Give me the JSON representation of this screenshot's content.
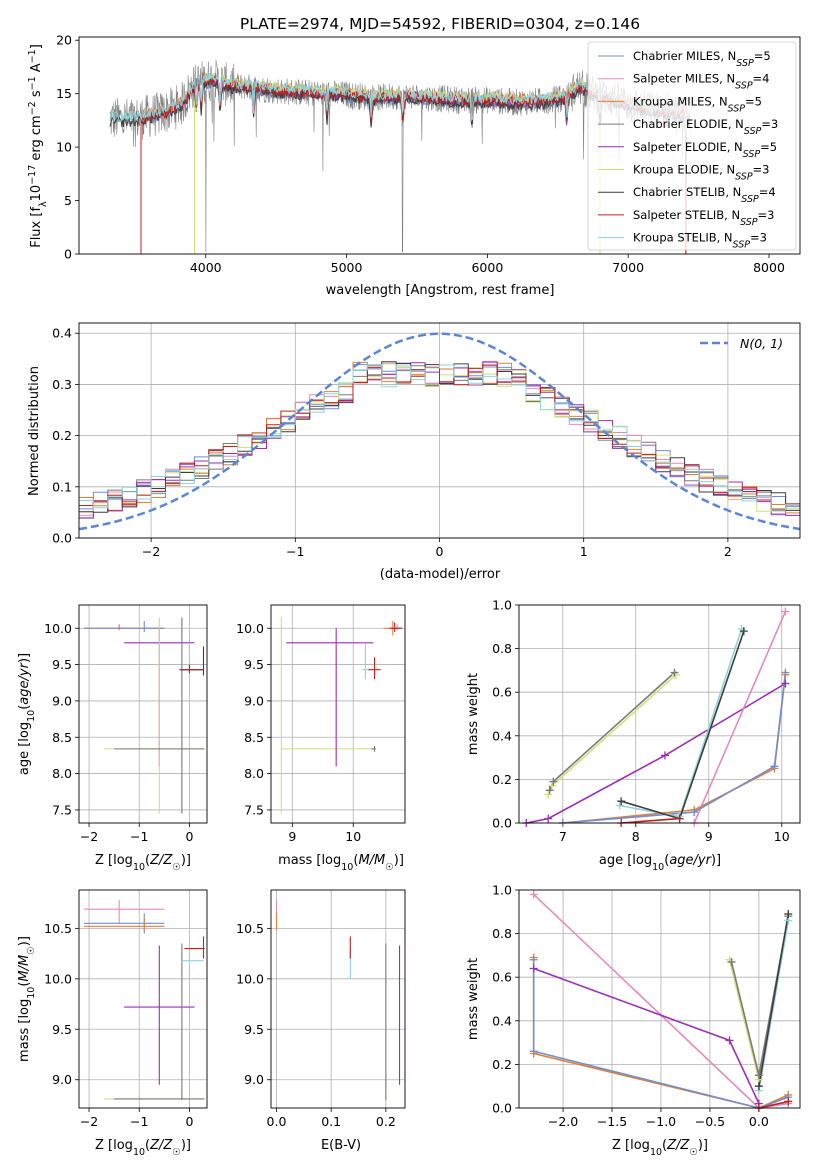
{
  "colors": {
    "chabrier_miles": "#6f8fd1",
    "salpeter_miles": "#e58ac1",
    "kroupa_miles": "#e0803a",
    "chabrier_elodie": "#7a7a7a",
    "salpeter_elodie": "#9a2fb5",
    "kroupa_elodie": "#cfe07a",
    "chabrier_stelib": "#3d3d3d",
    "salpeter_stelib": "#c0211f",
    "kroupa_stelib": "#8fd3dd",
    "normal": "#5b86d6",
    "grid": "#b0b0b0"
  },
  "chart_data": [
    {
      "id": "spectrum",
      "type": "line",
      "title": "PLATE=2974, MJD=54592, FIBERID=0304, z=0.146",
      "xlabel": "wavelength [Angstrom, rest frame]",
      "ylabel": "Flux [f_λ10^-17 erg cm^-2 s^-1 A^-1]",
      "xlim": [
        3100,
        8220
      ],
      "ylim": [
        0,
        20.3
      ],
      "xticks": [
        4000,
        5000,
        6000,
        7000,
        8000
      ],
      "yticks": [
        0,
        5,
        10,
        15,
        20
      ],
      "grid": false,
      "legend_position": "top-right",
      "legend": [
        {
          "name": "Chabrier MILES, N",
          "sub": "SSP",
          "suffix": "=5",
          "color_key": "chabrier_miles"
        },
        {
          "name": "Salpeter MILES, N",
          "sub": "SSP",
          "suffix": "=4",
          "color_key": "salpeter_miles"
        },
        {
          "name": "Kroupa MILES, N",
          "sub": "SSP",
          "suffix": "=5",
          "color_key": "kroupa_miles"
        },
        {
          "name": "Chabrier ELODIE, N",
          "sub": "SSP",
          "suffix": "=3",
          "color_key": "chabrier_elodie"
        },
        {
          "name": "Salpeter ELODIE, N",
          "sub": "SSP",
          "suffix": "=5",
          "color_key": "salpeter_elodie"
        },
        {
          "name": "Kroupa ELODIE, N",
          "sub": "SSP",
          "suffix": "=3",
          "color_key": "kroupa_elodie"
        },
        {
          "name": "Chabrier STELIB, N",
          "sub": "SSP",
          "suffix": "=4",
          "color_key": "chabrier_stelib"
        },
        {
          "name": "Salpeter STELIB, N",
          "sub": "SSP",
          "suffix": "=3",
          "color_key": "salpeter_stelib"
        },
        {
          "name": "Kroupa STELIB, N",
          "sub": "SSP",
          "suffix": "=3",
          "color_key": "kroupa_stelib"
        }
      ],
      "continuum": {
        "x": [
          3320,
          3500,
          3700,
          3830,
          3900,
          3950,
          4050,
          4150,
          4300,
          4500,
          4800,
          5000,
          5200,
          5400,
          5600,
          5800,
          6000,
          6200,
          6400,
          6550,
          6650,
          6750,
          6900,
          7100,
          7300,
          7430
        ],
        "y": [
          12.6,
          12.6,
          13.2,
          14.0,
          15.5,
          16.0,
          16.3,
          15.8,
          15.6,
          15.3,
          15.0,
          14.9,
          14.6,
          14.8,
          14.6,
          14.4,
          14.4,
          14.2,
          14.3,
          14.6,
          15.6,
          15.0,
          14.5,
          13.6,
          13.3,
          12.8
        ]
      },
      "model_ranges": [
        {
          "color_key": "chabrier_miles",
          "start": 3540,
          "end": 7410
        },
        {
          "color_key": "salpeter_miles",
          "start": 3540,
          "end": 7410
        },
        {
          "color_key": "kroupa_miles",
          "start": 3540,
          "end": 7410
        },
        {
          "color_key": "chabrier_elodie",
          "start": 3920,
          "end": 6800
        },
        {
          "color_key": "salpeter_elodie",
          "start": 3920,
          "end": 6800
        },
        {
          "color_key": "kroupa_elodie",
          "start": 3920,
          "end": 6800
        },
        {
          "color_key": "chabrier_stelib",
          "start": 3320,
          "end": 7410
        },
        {
          "color_key": "salpeter_stelib",
          "start": 3540,
          "end": 7410
        },
        {
          "color_key": "kroupa_stelib",
          "start": 3320,
          "end": 7410
        }
      ],
      "absorption_features": [
        3934,
        3968,
        4102,
        4340,
        4861,
        5175,
        5400,
        5890,
        6563,
        6800,
        7410
      ]
    },
    {
      "id": "residuals",
      "type": "line",
      "xlabel": "(data-model)/error",
      "ylabel": "Normed distribution",
      "xlim": [
        -2.5,
        2.5
      ],
      "ylim": [
        0,
        0.42
      ],
      "xticks": [
        -2,
        -1,
        0,
        1,
        2
      ],
      "yticks": [
        0.0,
        0.1,
        0.2,
        0.3,
        0.4
      ],
      "grid": true,
      "legend_position": "top-right",
      "legend_label": "N(0, 1)",
      "bin_width": 0.1
    },
    {
      "id": "age_vs_Z",
      "type": "scatter",
      "xlabel": "Z [log10(Z/Z☉)]",
      "ylabel": "age  [log10(age/yr)]",
      "xlim": [
        -2.2,
        0.35
      ],
      "ylim": [
        7.32,
        10.32
      ],
      "xticks": [
        -2,
        -1,
        0
      ],
      "yticks": [
        7.5,
        8.0,
        8.5,
        9.0,
        9.5,
        10.0
      ],
      "grid": true
    },
    {
      "id": "age_vs_mass",
      "type": "scatter",
      "xlabel": "mass [log10(M/M☉)]",
      "xlim": [
        8.65,
        10.85
      ],
      "ylim": [
        7.32,
        10.32
      ],
      "xticks": [
        9,
        10
      ],
      "yticks": [
        7.5,
        8.0,
        8.5,
        9.0,
        9.5,
        10.0
      ],
      "grid": true
    },
    {
      "id": "weight_vs_age",
      "type": "line",
      "xlabel": "age  [log10(age/yr)]",
      "ylabel": "mass weight",
      "xlim": [
        6.4,
        10.25
      ],
      "ylim": [
        0,
        1.0
      ],
      "xticks": [
        7,
        8,
        9,
        10
      ],
      "yticks": [
        0.0,
        0.2,
        0.4,
        0.6,
        0.8,
        1.0
      ],
      "grid": true,
      "series": [
        {
          "color_key": "kroupa_elodie",
          "points": [
            [
              6.8,
              0.13
            ],
            [
              6.85,
              0.17
            ],
            [
              8.55,
              0.68
            ]
          ]
        },
        {
          "color_key": "chabrier_elodie",
          "points": [
            [
              6.82,
              0.15
            ],
            [
              6.87,
              0.19
            ],
            [
              8.53,
              0.69
            ]
          ]
        },
        {
          "color_key": "salpeter_elodie",
          "points": [
            [
              6.5,
              0.0
            ],
            [
              6.8,
              0.02
            ],
            [
              8.4,
              0.31
            ],
            [
              10.05,
              0.64
            ]
          ]
        },
        {
          "color_key": "salpeter_miles",
          "points": [
            [
              8.8,
              0.0
            ],
            [
              10.05,
              0.97
            ]
          ]
        },
        {
          "color_key": "kroupa_miles",
          "points": [
            [
              7.0,
              0.0
            ],
            [
              8.8,
              0.06
            ],
            [
              9.9,
              0.25
            ],
            [
              10.05,
              0.68
            ]
          ]
        },
        {
          "color_key": "chabrier_miles",
          "points": [
            [
              7.0,
              0.0
            ],
            [
              8.8,
              0.05
            ],
            [
              9.9,
              0.26
            ],
            [
              10.05,
              0.69
            ]
          ]
        },
        {
          "color_key": "kroupa_stelib",
          "points": [
            [
              7.78,
              0.08
            ],
            [
              8.6,
              0.03
            ],
            [
              9.45,
              0.89
            ]
          ]
        },
        {
          "color_key": "chabrier_stelib",
          "points": [
            [
              7.8,
              0.1
            ],
            [
              8.6,
              0.02
            ],
            [
              9.48,
              0.88
            ]
          ]
        },
        {
          "color_key": "salpeter_stelib",
          "points": [
            [
              7.8,
              0.0
            ],
            [
              8.6,
              0.02
            ]
          ]
        }
      ]
    },
    {
      "id": "mass_vs_Z",
      "type": "scatter",
      "xlabel": "Z [log10(Z/Z☉)]",
      "ylabel": "mass [log10(M/M☉)]",
      "xlim": [
        -2.2,
        0.35
      ],
      "ylim": [
        8.72,
        10.88
      ],
      "xticks": [
        -2,
        -1,
        0
      ],
      "yticks": [
        9.0,
        9.5,
        10.0,
        10.5
      ],
      "grid": true
    },
    {
      "id": "mass_vs_ebv",
      "type": "scatter",
      "xlabel": "E(B-V)",
      "xlim": [
        -0.01,
        0.235
      ],
      "ylim": [
        8.72,
        10.88
      ],
      "xticks": [
        0.0,
        0.1,
        0.2
      ],
      "yticks": [
        9.0,
        9.5,
        10.0,
        10.5
      ],
      "grid": true
    },
    {
      "id": "weight_vs_Z",
      "type": "line",
      "xlabel": "Z [log10(Z/Z☉)]",
      "ylabel": "mass weight",
      "xlim": [
        -2.45,
        0.42
      ],
      "ylim": [
        0,
        1.0
      ],
      "xticks": [
        -2.0,
        -1.5,
        -1.0,
        -0.5,
        0.0
      ],
      "yticks": [
        0.0,
        0.2,
        0.4,
        0.6,
        0.8,
        1.0
      ],
      "grid": true,
      "series": [
        {
          "color_key": "salpeter_miles",
          "points": [
            [
              -2.3,
              0.98
            ],
            [
              0.0,
              0.0
            ],
            [
              0.3,
              0.02
            ]
          ]
        },
        {
          "color_key": "salpeter_elodie",
          "points": [
            [
              -2.3,
              0.64
            ],
            [
              -0.3,
              0.31
            ],
            [
              0.0,
              0.02
            ]
          ]
        },
        {
          "color_key": "kroupa_miles",
          "points": [
            [
              -2.3,
              0.69
            ],
            [
              -2.3,
              0.25
            ],
            [
              0.0,
              0.0
            ],
            [
              0.3,
              0.06
            ]
          ]
        },
        {
          "color_key": "chabrier_miles",
          "points": [
            [
              -2.3,
              0.68
            ],
            [
              -2.3,
              0.26
            ],
            [
              0.0,
              0.0
            ],
            [
              0.3,
              0.05
            ]
          ]
        },
        {
          "color_key": "kroupa_elodie",
          "points": [
            [
              -0.3,
              0.68
            ],
            [
              0.0,
              0.13
            ],
            [
              0.3,
              0.89
            ]
          ]
        },
        {
          "color_key": "chabrier_elodie",
          "points": [
            [
              -0.28,
              0.67
            ],
            [
              0.0,
              0.15
            ],
            [
              0.3,
              0.88
            ]
          ]
        },
        {
          "color_key": "kroupa_stelib",
          "points": [
            [
              0.0,
              0.08
            ],
            [
              0.3,
              0.86
            ]
          ]
        },
        {
          "color_key": "chabrier_stelib",
          "points": [
            [
              0.0,
              0.1
            ],
            [
              0.3,
              0.89
            ]
          ]
        },
        {
          "color_key": "salpeter_stelib",
          "points": [
            [
              0.0,
              0.0
            ],
            [
              0.3,
              0.03
            ]
          ]
        }
      ]
    }
  ],
  "error_bars": {
    "age_vs_Z": [
      {
        "color_key": "salpeter_miles",
        "x": -1.4,
        "y": 10.0,
        "xlo": -2.1,
        "xhi": -0.5,
        "ylo": 9.97,
        "yhi": 10.06
      },
      {
        "color_key": "kroupa_miles",
        "x": -1.4,
        "y": 10.0,
        "xlo": -2.1,
        "xhi": -0.5,
        "ylo": 9.98,
        "yhi": 10.04
      },
      {
        "color_key": "chabrier_miles",
        "x": -0.9,
        "y": 10.0,
        "xlo": -2.1,
        "xhi": -0.5,
        "ylo": 9.95,
        "yhi": 10.1
      },
      {
        "color_key": "salpeter_elodie",
        "x": -0.6,
        "y": 9.8,
        "xlo": -1.3,
        "xhi": 0.1,
        "ylo": 8.1,
        "yhi": 10.0
      },
      {
        "color_key": "kroupa_elodie",
        "x": -0.6,
        "y": 8.34,
        "xlo": -1.7,
        "xhi": 0.3,
        "ylo": 7.45,
        "yhi": 10.15
      },
      {
        "color_key": "chabrier_elodie",
        "x": -0.15,
        "y": 8.34,
        "xlo": -1.5,
        "xhi": 0.3,
        "ylo": 7.45,
        "yhi": 10.15
      },
      {
        "color_key": "kroupa_stelib",
        "x": 0.0,
        "y": 9.43,
        "xlo": -0.2,
        "xhi": 0.28,
        "ylo": 9.3,
        "yhi": 9.8
      },
      {
        "color_key": "chabrier_stelib",
        "x": 0.28,
        "y": 9.43,
        "xlo": -0.2,
        "xhi": 0.28,
        "ylo": 9.35,
        "yhi": 9.75
      },
      {
        "color_key": "salpeter_stelib",
        "x": 0.0,
        "y": 9.43,
        "xlo": -0.15,
        "xhi": 0.25,
        "ylo": 9.38,
        "yhi": 9.5
      }
    ],
    "age_vs_mass": [
      {
        "color_key": "kroupa_elodie",
        "x": 8.82,
        "y": 8.34,
        "xlo": 8.82,
        "xhi": 10.35,
        "ylo": 7.45,
        "yhi": 10.15
      },
      {
        "color_key": "salpeter_elodie",
        "x": 9.72,
        "y": 9.8,
        "xlo": 8.9,
        "xhi": 10.33,
        "ylo": 8.1,
        "yhi": 10.0
      },
      {
        "color_key": "chabrier_elodie",
        "x": 10.35,
        "y": 8.34,
        "xlo": 10.3,
        "xhi": 10.37,
        "ylo": 8.3,
        "yhi": 8.38
      },
      {
        "color_key": "kroupa_stelib",
        "x": 10.2,
        "y": 9.43,
        "xlo": 10.15,
        "xhi": 10.3,
        "ylo": 9.3,
        "yhi": 9.8
      },
      {
        "color_key": "salpeter_stelib",
        "x": 10.35,
        "y": 9.43,
        "xlo": 10.25,
        "xhi": 10.45,
        "ylo": 9.3,
        "yhi": 9.6
      },
      {
        "color_key": "salpeter_miles",
        "x": 10.72,
        "y": 10.0,
        "xlo": 10.6,
        "xhi": 10.8,
        "ylo": 9.97,
        "yhi": 10.06
      },
      {
        "color_key": "kroupa_miles",
        "x": 10.65,
        "y": 10.0,
        "xlo": 10.5,
        "xhi": 10.75,
        "ylo": 9.9,
        "yhi": 10.1
      },
      {
        "color_key": "salpeter_stelib",
        "x": 10.68,
        "y": 10.0,
        "xlo": 10.6,
        "xhi": 10.8,
        "ylo": 9.95,
        "yhi": 10.08
      }
    ],
    "mass_vs_Z": [
      {
        "color_key": "salpeter_miles",
        "x": -1.4,
        "y": 10.69,
        "xlo": -2.1,
        "xhi": -0.5,
        "ylo": 10.55,
        "yhi": 10.78
      },
      {
        "color_key": "chabrier_miles",
        "x": -0.9,
        "y": 10.55,
        "xlo": -2.1,
        "xhi": -0.5,
        "ylo": 10.45,
        "yhi": 10.65
      },
      {
        "color_key": "kroupa_miles",
        "x": -0.9,
        "y": 10.52,
        "xlo": -2.1,
        "xhi": -0.5,
        "ylo": 10.48,
        "yhi": 10.6
      },
      {
        "color_key": "salpeter_elodie",
        "x": -0.6,
        "y": 9.72,
        "xlo": -1.3,
        "xhi": 0.1,
        "ylo": 8.95,
        "yhi": 10.33
      },
      {
        "color_key": "kroupa_elodie",
        "x": -0.15,
        "y": 8.81,
        "xlo": -1.7,
        "xhi": 0.3,
        "ylo": 8.8,
        "yhi": 8.83
      },
      {
        "color_key": "chabrier_elodie",
        "x": -0.15,
        "y": 8.81,
        "xlo": -1.5,
        "xhi": 0.3,
        "ylo": 8.8,
        "yhi": 10.35
      },
      {
        "color_key": "kroupa_stelib",
        "x": 0.0,
        "y": 10.18,
        "xlo": -0.15,
        "xhi": 0.28,
        "ylo": 10.0,
        "yhi": 10.3
      },
      {
        "color_key": "salpeter_stelib",
        "x": 0.28,
        "y": 10.3,
        "xlo": -0.1,
        "xhi": 0.3,
        "ylo": 10.2,
        "yhi": 10.42
      }
    ],
    "mass_vs_ebv": [
      {
        "color_key": "salpeter_miles",
        "x": 0.0,
        "y": 10.69,
        "xlo": 0.0,
        "xhi": 0.0,
        "ylo": 10.55,
        "yhi": 10.78
      },
      {
        "color_key": "kroupa_miles",
        "x": 0.0,
        "y": 10.55,
        "xlo": 0.0,
        "xhi": 0.0,
        "ylo": 10.48,
        "yhi": 10.65
      },
      {
        "color_key": "kroupa_stelib",
        "x": 0.135,
        "y": 10.18,
        "xlo": 0.135,
        "xhi": 0.135,
        "ylo": 10.0,
        "yhi": 10.3
      },
      {
        "color_key": "salpeter_stelib",
        "x": 0.135,
        "y": 10.3,
        "xlo": 0.135,
        "xhi": 0.135,
        "ylo": 10.2,
        "yhi": 10.42
      },
      {
        "color_key": "kroupa_elodie",
        "x": 0.2,
        "y": 8.81,
        "xlo": 0.2,
        "xhi": 0.2,
        "ylo": 8.8,
        "yhi": 10.35
      },
      {
        "color_key": "chabrier_elodie",
        "x": 0.2,
        "y": 9.5,
        "xlo": 0.2,
        "xhi": 0.2,
        "ylo": 8.8,
        "yhi": 10.35
      },
      {
        "color_key": "salpeter_elodie",
        "x": 0.225,
        "y": 9.72,
        "xlo": 0.225,
        "xhi": 0.225,
        "ylo": 8.95,
        "yhi": 10.33
      }
    ]
  }
}
